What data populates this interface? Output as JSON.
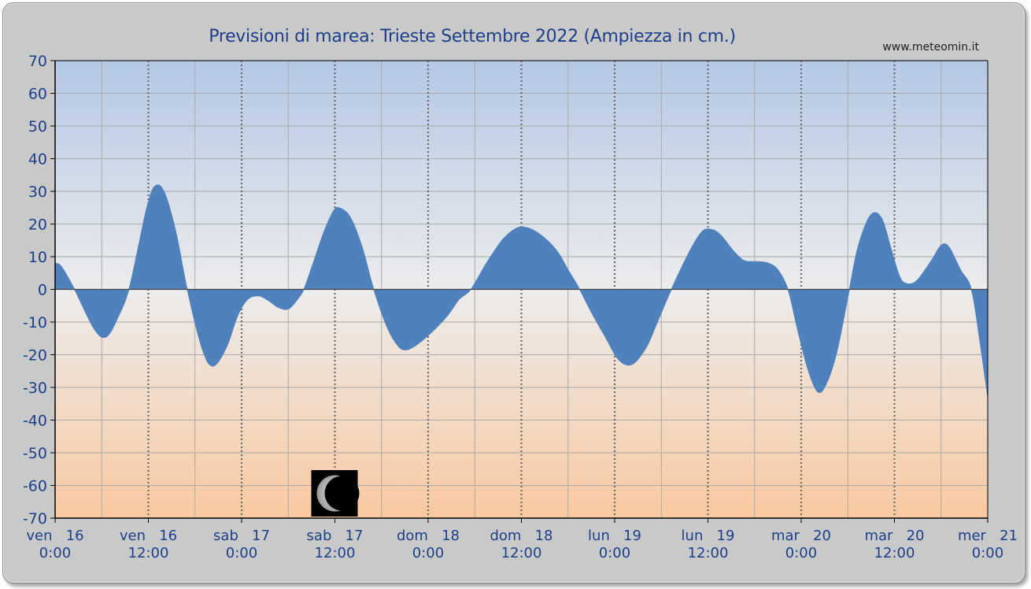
{
  "chart_data": {
    "type": "area",
    "title": "Previsioni di marea: Trieste Settembre 2022 (Ampiezza in cm.)",
    "source_label": "www.meteomin.it",
    "xlabel": "",
    "ylabel": "",
    "ylim": [
      -70,
      70
    ],
    "yticks": [
      70,
      60,
      50,
      40,
      30,
      20,
      10,
      0,
      -10,
      -20,
      -30,
      -40,
      -50,
      -60,
      -70
    ],
    "xlim_hours": [
      0,
      120
    ],
    "xticks": [
      {
        "day": "ven   16",
        "time": "0:00"
      },
      {
        "day": "ven   16",
        "time": "12:00"
      },
      {
        "day": "sab   17",
        "time": "0:00"
      },
      {
        "day": "sab   17",
        "time": "12:00"
      },
      {
        "day": "dom   18",
        "time": "0:00"
      },
      {
        "day": "dom   18",
        "time": "12:00"
      },
      {
        "day": "lun   19",
        "time": "0:00"
      },
      {
        "day": "lun   19",
        "time": "12:00"
      },
      {
        "day": "mar   20",
        "time": "0:00"
      },
      {
        "day": "mar   20",
        "time": "12:00"
      },
      {
        "day": "mer   21",
        "time": "0:00"
      }
    ],
    "grid": true,
    "series": [
      {
        "color": "#4f81bd",
        "hours": [
          0,
          0.8,
          2.5,
          5,
          6.6,
          8.2,
          9.5,
          10.8,
          11.8,
          12.8,
          14,
          15.5,
          17,
          18.9,
          20.3,
          22,
          23.5,
          24.8,
          26.2,
          27.5,
          28.7,
          30,
          31.2,
          32,
          33.2,
          34.5,
          35.7,
          36.5,
          38,
          39.5,
          41,
          42.8,
          44.2,
          45.2,
          46.5,
          48.5,
          50.5,
          52,
          53.5,
          55.5,
          57.5,
          59.2,
          60.5,
          62.3,
          64.5,
          66,
          67.5,
          69,
          70.9,
          72.5,
          74.2,
          76,
          77.5,
          79.3,
          81.5,
          83,
          84,
          85.5,
          87.2,
          88.5,
          89.5,
          90.5,
          91.8,
          93,
          94.3,
          95.5,
          96.8,
          98,
          99,
          100.5,
          102.2,
          103.2,
          104.5,
          105.5,
          106.5,
          107.5,
          108.5,
          109.3,
          110.8,
          112.8,
          114,
          115,
          116.5,
          117.9,
          119,
          120
        ],
        "values": [
          8,
          7,
          0,
          -12,
          -14.5,
          -8,
          0,
          14,
          25,
          31.5,
          30,
          18,
          0,
          -18,
          -23.5,
          -18,
          -8,
          -3,
          -2,
          -3.5,
          -5.5,
          -6,
          -3,
          0,
          8,
          17,
          23.5,
          25,
          22,
          13,
          0,
          -12,
          -17.5,
          -18.5,
          -17,
          -13,
          -8,
          -3,
          0,
          8,
          15,
          18.5,
          19,
          17,
          12,
          6,
          0,
          -7,
          -15,
          -21.5,
          -23,
          -18,
          -10,
          0,
          11,
          17,
          18.5,
          17,
          12,
          9,
          8.5,
          8.5,
          8,
          6,
          0,
          -12,
          -24,
          -31,
          -30,
          -20,
          0,
          12,
          21,
          23.5,
          21,
          13,
          5,
          2,
          2.5,
          9,
          13.5,
          13,
          6,
          0,
          -16,
          -33
        ]
      }
    ],
    "annotations": [
      {
        "type": "moon-phase",
        "phase": "waning crescent",
        "hour": 36
      }
    ]
  }
}
